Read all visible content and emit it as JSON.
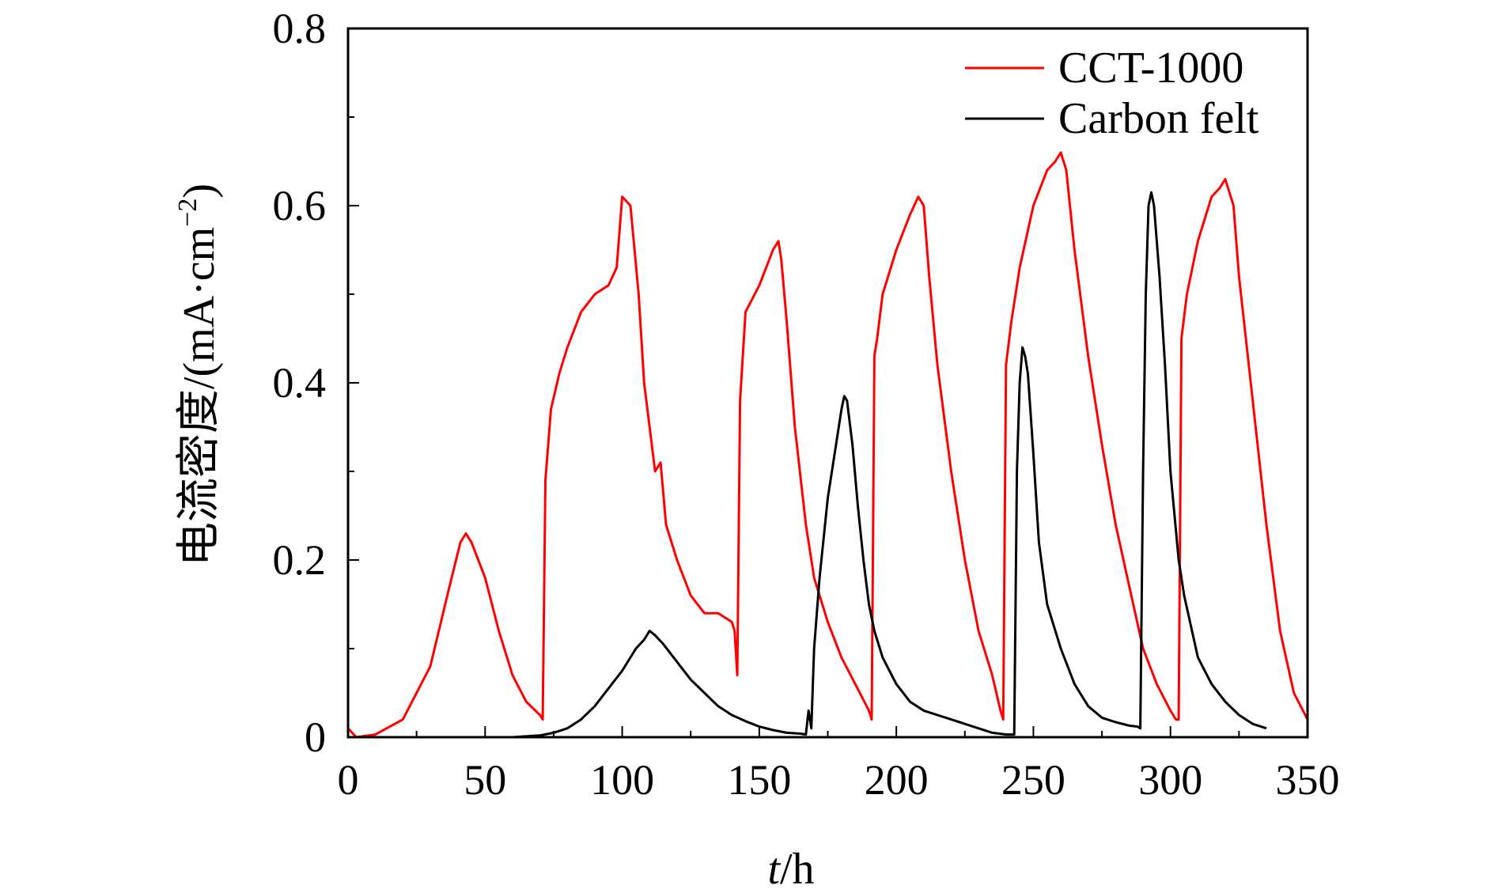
{
  "chart_data": {
    "type": "line",
    "title": "",
    "xlabel_italic": "t",
    "xlabel_unit": "/h",
    "ylabel": "电流密度/(mA·cm",
    "ylabel_sup": "−2",
    "ylabel_close": ")",
    "xlim": [
      0,
      350
    ],
    "ylim": [
      0,
      0.8
    ],
    "x_ticks": [
      0,
      50,
      100,
      150,
      200,
      250,
      300,
      350
    ],
    "x_tick_labels": [
      "0",
      "50",
      "100",
      "150",
      "200",
      "250",
      "300",
      "350"
    ],
    "y_ticks": [
      0,
      0.2,
      0.4,
      0.6,
      0.8
    ],
    "y_tick_labels": [
      "0",
      "0.2",
      "0.4",
      "0.6",
      "0.8"
    ],
    "grid": false,
    "legend_position": "top-right",
    "series": [
      {
        "name": "CCT-1000",
        "color": "#ff0000",
        "x": [
          0,
          3,
          10,
          20,
          30,
          37,
          41,
          43,
          45,
          50,
          55,
          60,
          65,
          70,
          71,
          72,
          74,
          77,
          80,
          85,
          90,
          95,
          98,
          100,
          103,
          106,
          108,
          112,
          114,
          116,
          120,
          125,
          130,
          135,
          140,
          141,
          142,
          143,
          145,
          150,
          155,
          157,
          158,
          160,
          163,
          167,
          170,
          175,
          180,
          185,
          190,
          191,
          192,
          193,
          195,
          200,
          205,
          208,
          210,
          212,
          215,
          220,
          225,
          230,
          235,
          238,
          239,
          240,
          242,
          245,
          250,
          255,
          258,
          260,
          262,
          265,
          270,
          275,
          280,
          285,
          290,
          295,
          300,
          302,
          303,
          304,
          306,
          310,
          315,
          318,
          320,
          323,
          325,
          330,
          335,
          340,
          345,
          350
        ],
        "y": [
          0.01,
          0.0,
          0.003,
          0.02,
          0.08,
          0.17,
          0.22,
          0.23,
          0.22,
          0.18,
          0.12,
          0.07,
          0.04,
          0.025,
          0.02,
          0.29,
          0.37,
          0.41,
          0.44,
          0.48,
          0.5,
          0.51,
          0.53,
          0.61,
          0.6,
          0.5,
          0.4,
          0.3,
          0.31,
          0.24,
          0.2,
          0.16,
          0.14,
          0.14,
          0.13,
          0.12,
          0.07,
          0.38,
          0.48,
          0.51,
          0.55,
          0.56,
          0.54,
          0.47,
          0.35,
          0.24,
          0.18,
          0.13,
          0.09,
          0.06,
          0.03,
          0.02,
          0.43,
          0.45,
          0.5,
          0.55,
          0.59,
          0.61,
          0.6,
          0.52,
          0.42,
          0.3,
          0.2,
          0.12,
          0.07,
          0.03,
          0.02,
          0.42,
          0.47,
          0.53,
          0.6,
          0.64,
          0.65,
          0.66,
          0.64,
          0.55,
          0.43,
          0.33,
          0.24,
          0.17,
          0.1,
          0.06,
          0.03,
          0.02,
          0.02,
          0.45,
          0.5,
          0.56,
          0.61,
          0.62,
          0.63,
          0.6,
          0.52,
          0.38,
          0.24,
          0.12,
          0.05,
          0.02
        ]
      },
      {
        "name": "Carbon felt",
        "color": "#000000",
        "x": [
          50,
          60,
          70,
          75,
          80,
          85,
          90,
          95,
          100,
          105,
          108,
          110,
          112,
          115,
          120,
          125,
          130,
          135,
          140,
          145,
          150,
          155,
          160,
          165,
          167,
          168,
          169,
          170,
          172,
          175,
          178,
          180,
          181,
          182,
          184,
          186,
          188,
          190,
          192,
          195,
          200,
          205,
          210,
          215,
          220,
          225,
          230,
          235,
          240,
          243,
          244,
          245,
          246,
          247,
          248,
          250,
          252,
          255,
          260,
          265,
          270,
          275,
          280,
          285,
          288,
          289,
          290,
          291,
          292,
          293,
          294,
          296,
          298,
          300,
          303,
          305,
          310,
          315,
          320,
          325,
          330,
          335
        ],
        "y": [
          0.0,
          0.0,
          0.002,
          0.005,
          0.01,
          0.02,
          0.035,
          0.055,
          0.075,
          0.1,
          0.11,
          0.12,
          0.115,
          0.105,
          0.085,
          0.065,
          0.05,
          0.035,
          0.025,
          0.018,
          0.012,
          0.008,
          0.005,
          0.004,
          0.003,
          0.03,
          0.01,
          0.1,
          0.18,
          0.27,
          0.33,
          0.37,
          0.385,
          0.38,
          0.33,
          0.26,
          0.2,
          0.15,
          0.12,
          0.09,
          0.06,
          0.04,
          0.03,
          0.025,
          0.02,
          0.015,
          0.01,
          0.005,
          0.003,
          0.003,
          0.3,
          0.4,
          0.44,
          0.43,
          0.41,
          0.32,
          0.22,
          0.15,
          0.1,
          0.06,
          0.035,
          0.022,
          0.017,
          0.013,
          0.012,
          0.01,
          0.3,
          0.5,
          0.6,
          0.615,
          0.6,
          0.52,
          0.42,
          0.3,
          0.2,
          0.16,
          0.09,
          0.06,
          0.04,
          0.025,
          0.015,
          0.01
        ]
      }
    ]
  }
}
